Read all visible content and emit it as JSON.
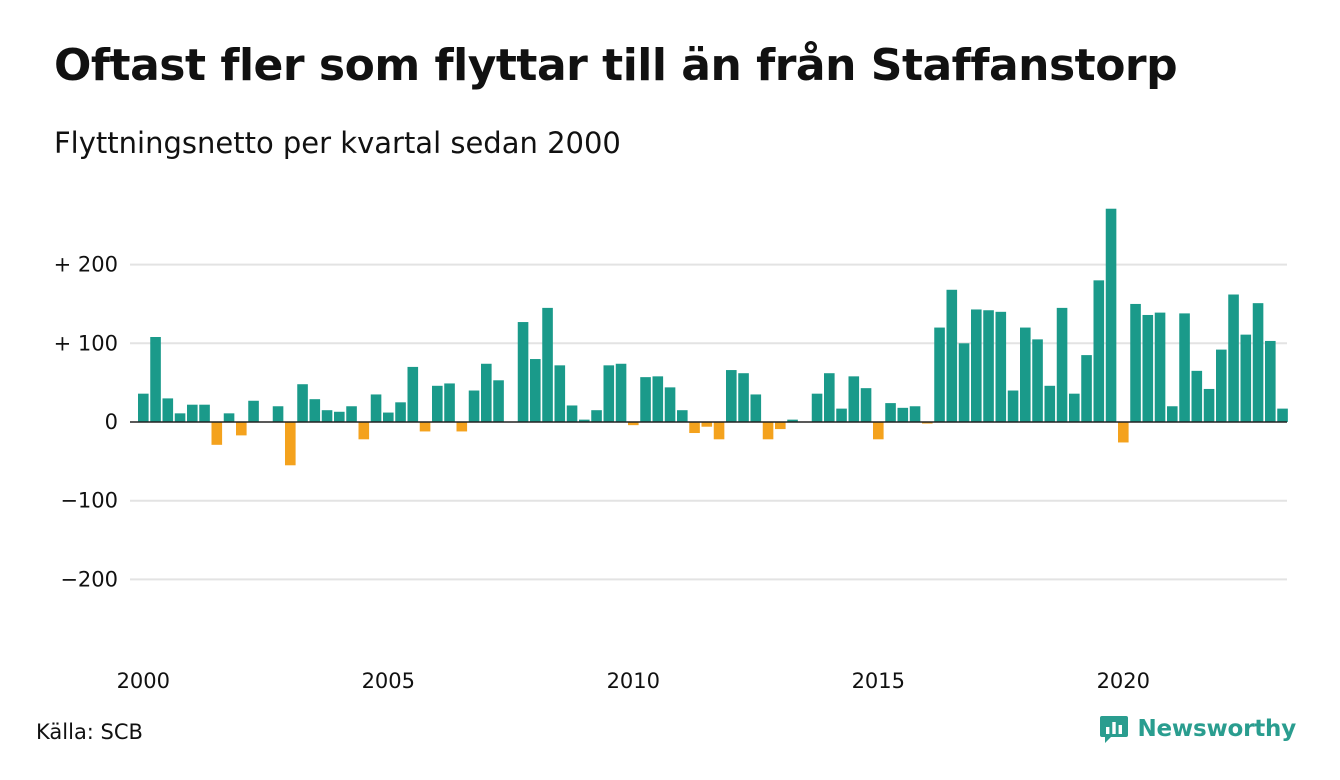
{
  "title": "Oftast fler som flyttar till än från Staffanstorp",
  "subtitle": "Flyttningsnetto per kvartal sedan 2000",
  "source": "Källa: SCB",
  "brand": {
    "name": "Newsworthy",
    "icon": "newsworthy-logo-icon"
  },
  "colors": {
    "positive": "#1a9a8a",
    "negative": "#f4a21d",
    "grid": "#e3e3e3",
    "zero_line": "#222222",
    "brand": "#2a9d8f"
  },
  "chart_data": {
    "type": "bar",
    "title": "Oftast fler som flyttar till än från Staffanstorp",
    "subtitle": "Flyttningsnetto per kvartal sedan 2000",
    "ylim": [
      -230,
      285
    ],
    "y_ticks": [
      {
        "value": 200,
        "label": "+ 200"
      },
      {
        "value": 100,
        "label": "+ 100"
      },
      {
        "value": 0,
        "label": "0"
      },
      {
        "value": -100,
        "label": "−100"
      },
      {
        "value": -200,
        "label": "−200"
      }
    ],
    "x_ticks": [
      "2000",
      "2005",
      "2010",
      "2015",
      "2020"
    ],
    "grid": true,
    "legend": "none",
    "series": [
      {
        "first_quarter": "2000 Q1",
        "values": [
          36,
          108,
          30,
          11,
          22,
          22,
          -29,
          11,
          -17,
          27,
          0,
          20,
          -55,
          48,
          29,
          15,
          13,
          20,
          -22,
          35,
          12,
          25,
          70,
          -12,
          46,
          49,
          -12,
          40,
          74,
          53,
          0,
          127,
          80,
          145,
          72,
          21,
          3,
          15,
          72,
          74,
          -4,
          57,
          58,
          44,
          15,
          -14,
          -6,
          -22,
          66,
          62,
          35,
          -22,
          -9,
          3,
          0,
          36,
          62,
          17,
          58,
          43,
          -22,
          24,
          18,
          20,
          -2,
          120,
          168,
          100,
          143,
          142,
          140,
          40,
          120,
          105,
          46,
          145,
          36,
          85,
          180,
          271,
          -26,
          150,
          136,
          139,
          20,
          138,
          65,
          42,
          92,
          162,
          111,
          151,
          103,
          17
        ]
      }
    ]
  }
}
